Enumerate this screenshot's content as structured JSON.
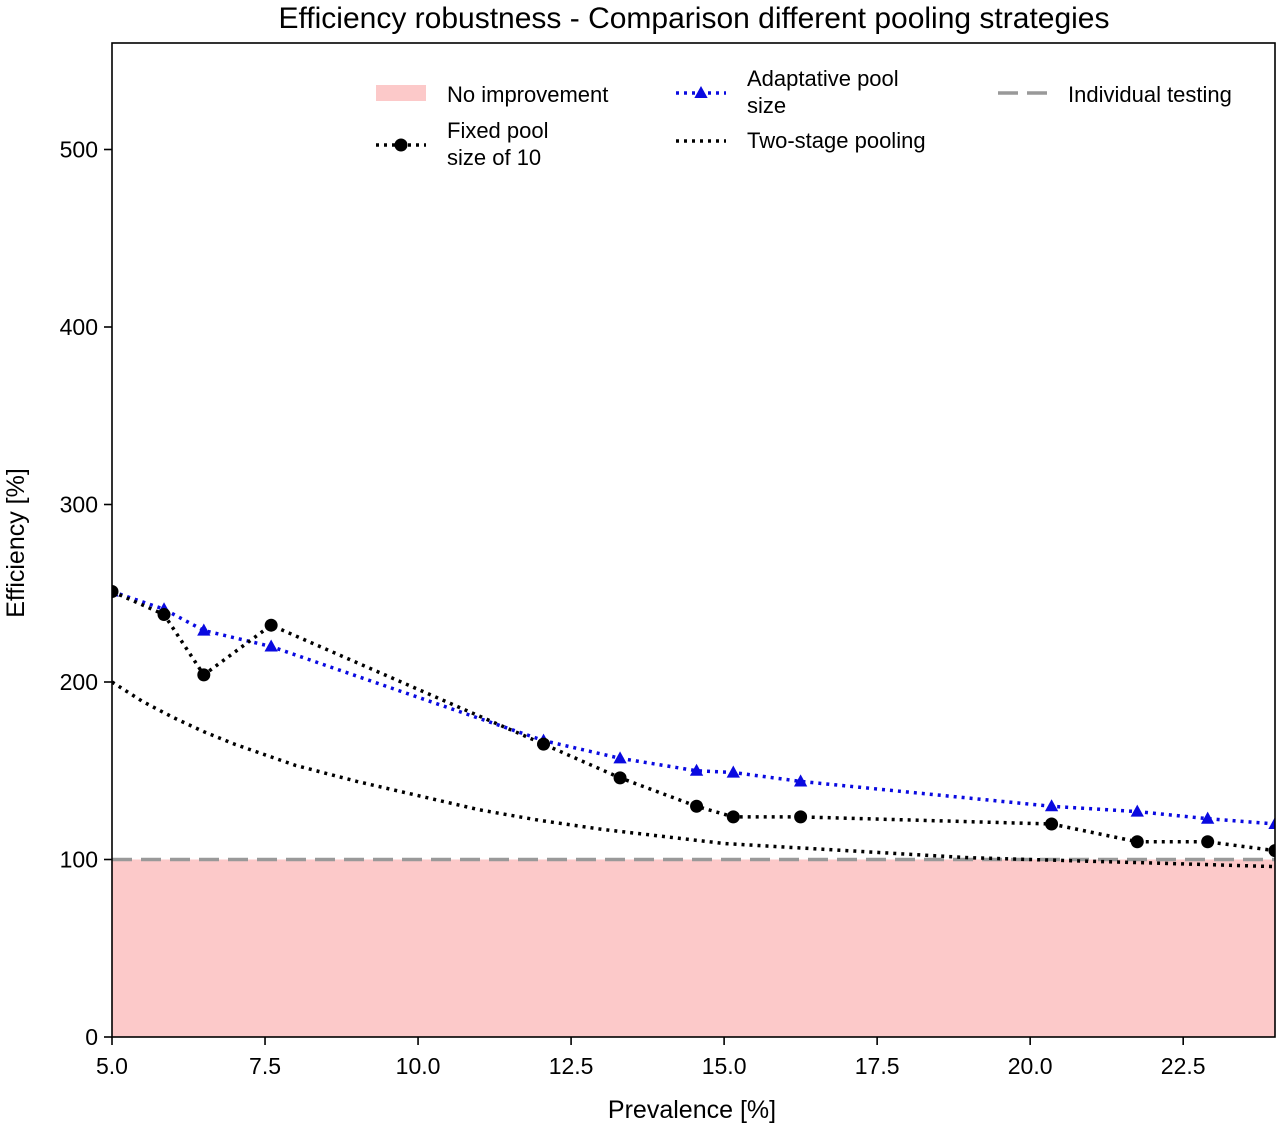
{
  "chart_data": {
    "type": "line",
    "title": "Efficiency robustness - Comparison different pooling strategies",
    "xlabel": "Prevalence [%]",
    "ylabel": "Efficiency [%]",
    "xlim": [
      5.0,
      24.0
    ],
    "ylim": [
      0,
      560
    ],
    "xticks": [
      "5.0",
      "7.5",
      "10.0",
      "12.5",
      "15.0",
      "17.5",
      "20.0",
      "22.5"
    ],
    "yticks": [
      "0",
      "100",
      "200",
      "300",
      "400",
      "500"
    ],
    "grid": false,
    "legend_placement": "top",
    "no_improvement_region": {
      "label": "No improvement",
      "y_max": 100,
      "color": "#fcc9c9"
    },
    "reference_line": {
      "label": "Individual testing",
      "y": 100,
      "color": "#999999"
    },
    "series": [
      {
        "name": "Adaptative pool size",
        "legend_lines": [
          "Adaptative pool",
          "size"
        ],
        "color": "#0a0ae0",
        "marker": "triangle",
        "x": [
          5.0,
          5.85,
          6.5,
          7.6,
          12.05,
          13.3,
          14.55,
          15.15,
          16.25,
          20.35,
          21.75,
          22.9,
          24.0
        ],
        "y": [
          251,
          241,
          229,
          220,
          167,
          157,
          150,
          149,
          144,
          130,
          127,
          123,
          120
        ]
      },
      {
        "name": "Fixed pool size of 10",
        "legend_lines": [
          "Fixed pool",
          "size of 10"
        ],
        "color": "#000000",
        "marker": "circle",
        "x": [
          5.0,
          5.85,
          6.5,
          7.6,
          12.05,
          13.3,
          14.55,
          15.15,
          16.25,
          20.35,
          21.75,
          22.9,
          24.0
        ],
        "y": [
          251,
          238,
          204,
          232,
          165,
          146,
          130,
          124,
          124,
          120,
          110,
          110,
          105
        ]
      },
      {
        "name": "Two-stage pooling",
        "legend_lines": [
          "Two-stage pooling"
        ],
        "color": "#000000",
        "marker": "none",
        "x": [
          5.0,
          5.5,
          6.0,
          6.5,
          7.0,
          7.5,
          8.0,
          9.0,
          10.0,
          11.0,
          12.0,
          13.0,
          14.0,
          15.0,
          16.0,
          17.0,
          18.0,
          19.0,
          20.0,
          21.0,
          22.0,
          23.0,
          24.0
        ],
        "y": [
          200,
          189,
          180,
          172,
          165,
          159,
          153,
          144,
          136,
          128,
          122,
          117,
          113,
          109,
          107,
          105,
          103,
          101,
          100,
          99,
          98,
          97,
          96
        ]
      }
    ]
  }
}
